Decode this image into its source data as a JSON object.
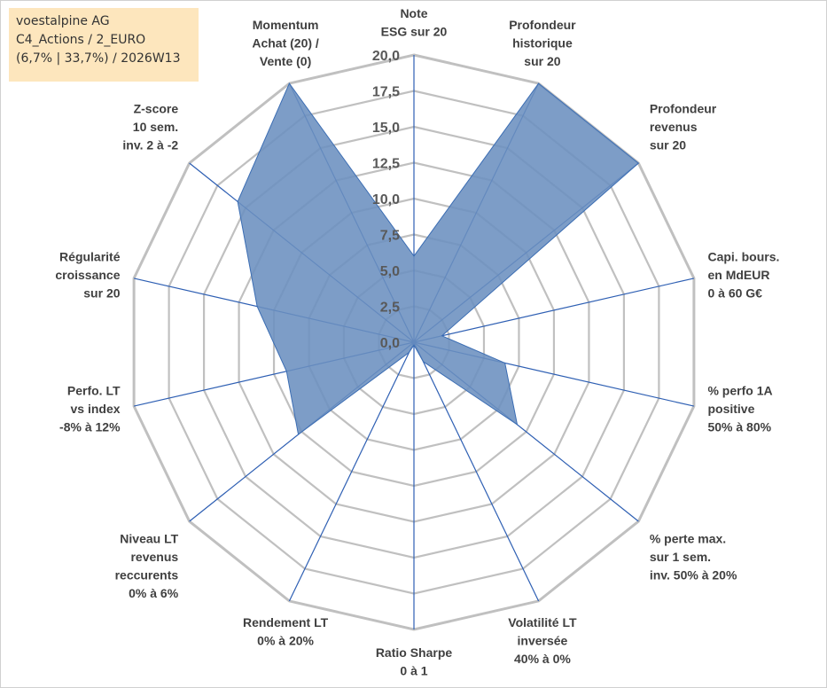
{
  "info": {
    "company": "voestalpine AG",
    "category": "C4_Actions / 2_EURO",
    "stats": "(6,7% | 33,7%) / 2026W13"
  },
  "colors": {
    "fill": "#6b8fbf",
    "stroke": "#3b6db3",
    "grid": "#c0c0c0",
    "spoke": "#2e5fb3"
  },
  "chart_data": {
    "type": "radar",
    "title": "",
    "rmin": 0,
    "rmax": 20,
    "ticks": [
      "0,0",
      "2,5",
      "5,0",
      "7,5",
      "10,0",
      "12,5",
      "15,0",
      "17,5",
      "20,0"
    ],
    "axes": [
      {
        "label": [
          "Note",
          "ESG sur 20"
        ],
        "value": 6
      },
      {
        "label": [
          "Profondeur",
          "historique",
          "sur 20"
        ],
        "value": 20
      },
      {
        "label": [
          "Profondeur",
          "revenus",
          "sur 20"
        ],
        "value": 20
      },
      {
        "label": [
          "Capi. bours.",
          "en MdEUR",
          "0 à 60 G€"
        ],
        "value": 2
      },
      {
        "label": [
          "% perfo 1A",
          "positive",
          "50% à 80%"
        ],
        "value": 6.5
      },
      {
        "label": [
          "% perte max.",
          "sur 1 sem.",
          "inv. 50% à 20%"
        ],
        "value": 9.2
      },
      {
        "label": [
          "Volatilité LT",
          "inversée",
          "40% à 0%"
        ],
        "value": 1.5
      },
      {
        "label": [
          "Ratio Sharpe",
          "0 à 1"
        ],
        "value": 0.2
      },
      {
        "label": [
          "Rendement LT",
          "0% à 20%"
        ],
        "value": 0.8
      },
      {
        "label": [
          "Niveau LT",
          "revenus",
          "reccurents",
          "0% à 6%"
        ],
        "value": 10.3
      },
      {
        "label": [
          "Perfo. LT",
          "vs index",
          "-8% à 12%"
        ],
        "value": 9.1
      },
      {
        "label": [
          "Régularité",
          "croissance",
          "sur 20"
        ],
        "value": 11.2
      },
      {
        "label": [
          "Z-score",
          "10 sem.",
          "inv. 2 à -2"
        ],
        "value": 15.7
      },
      {
        "label": [
          "Momentum",
          "Achat (20) /",
          "Vente (0)"
        ],
        "value": 20
      }
    ]
  }
}
